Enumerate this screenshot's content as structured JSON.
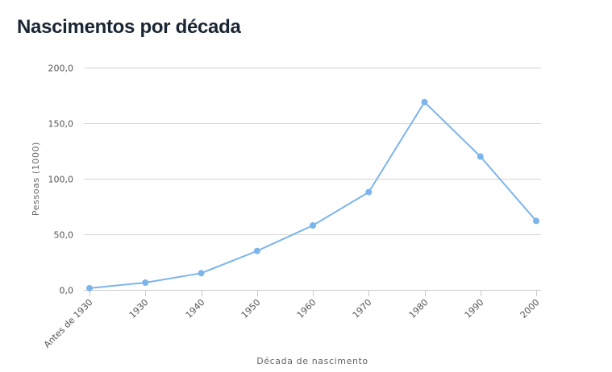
{
  "chart_data": {
    "type": "line",
    "title": "Nascimentos por década",
    "xlabel": "Década de nascimento",
    "ylabel": "Pessoas (1000)",
    "categories": [
      "Antes de 1930",
      "1930",
      "1940",
      "1950",
      "1960",
      "1970",
      "1980",
      "1990",
      "2000"
    ],
    "series": [
      {
        "values": [
          1.5,
          6.5,
          15,
          35,
          58,
          88,
          169,
          120,
          62
        ],
        "color": "#7cb5ec"
      }
    ],
    "ylim": [
      0,
      200
    ],
    "yticks": [
      0,
      50,
      100,
      150,
      200
    ],
    "ytick_labels": [
      "0,0",
      "50,0",
      "100,0",
      "150,0",
      "200,0"
    ],
    "grid": true,
    "legend": false
  }
}
